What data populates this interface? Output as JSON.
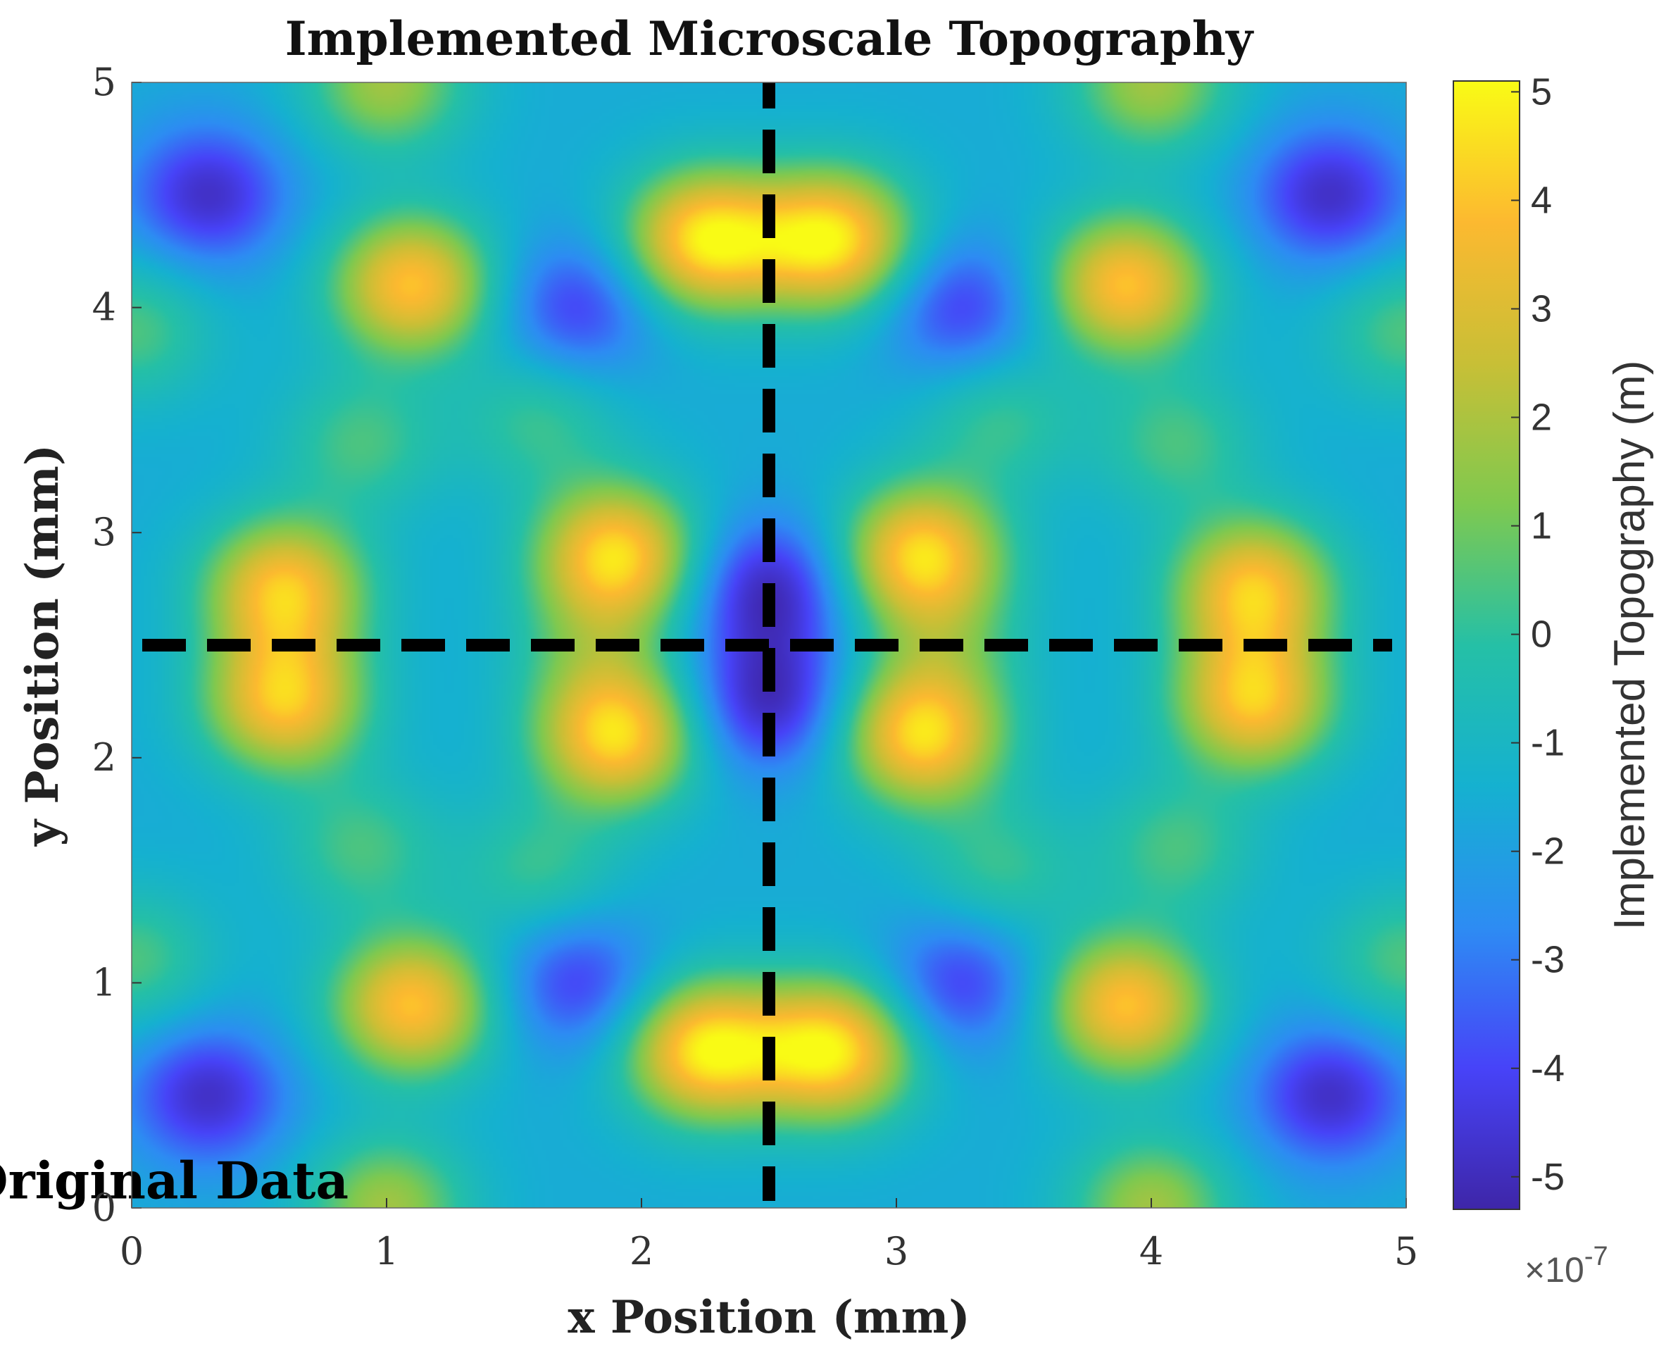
{
  "chart_data": {
    "type": "heatmap",
    "title": "Implemented Microscale Topography",
    "xlabel": "x Position (mm)",
    "ylabel": "y Position (mm)",
    "xlim": [
      0,
      5
    ],
    "ylim": [
      0,
      5
    ],
    "x_ticks": [
      "0",
      "1",
      "2",
      "3",
      "4",
      "5"
    ],
    "y_ticks": [
      "0",
      "1",
      "2",
      "3",
      "4",
      "5"
    ],
    "colorbar": {
      "label": "Implemented Topography (m)",
      "range": [
        -5.3e-07,
        5.1e-07
      ],
      "ticks": [
        "-5",
        "-4",
        "-3",
        "-2",
        "-1",
        "0",
        "1",
        "2",
        "3",
        "4",
        "5"
      ],
      "tick_values": [
        -5,
        -4,
        -3,
        -2,
        -1,
        0,
        1,
        2,
        3,
        4,
        5
      ],
      "multiplier_base": "×10",
      "multiplier_exp": "-7",
      "colormap": "parula",
      "colors": [
        "#3e26a8",
        "#4743f8",
        "#2d8cf3",
        "#15b1d0",
        "#25c0a6",
        "#7fc94f",
        "#c8bf36",
        "#fcb930",
        "#f9fb15"
      ]
    },
    "background_level": -1.6,
    "features": [
      {
        "x": 2.25,
        "y": 4.3,
        "value": 4.8
      },
      {
        "x": 2.75,
        "y": 4.3,
        "value": 4.8
      },
      {
        "x": 2.25,
        "y": 0.7,
        "value": 4.8
      },
      {
        "x": 2.75,
        "y": 0.7,
        "value": 4.8
      },
      {
        "x": 1.1,
        "y": 4.1,
        "value": 4.0
      },
      {
        "x": 3.9,
        "y": 4.1,
        "value": 4.0
      },
      {
        "x": 1.1,
        "y": 0.9,
        "value": 4.0
      },
      {
        "x": 3.9,
        "y": 0.9,
        "value": 4.0
      },
      {
        "x": 0.6,
        "y": 2.75,
        "value": 4.0
      },
      {
        "x": 0.6,
        "y": 2.25,
        "value": 4.0
      },
      {
        "x": 4.4,
        "y": 2.75,
        "value": 4.0
      },
      {
        "x": 4.4,
        "y": 2.25,
        "value": 4.0
      },
      {
        "x": 1.9,
        "y": 2.9,
        "value": 4.5
      },
      {
        "x": 3.1,
        "y": 2.9,
        "value": 4.5
      },
      {
        "x": 1.9,
        "y": 2.1,
        "value": 4.5
      },
      {
        "x": 3.1,
        "y": 2.1,
        "value": 4.5
      },
      {
        "x": 2.5,
        "y": 2.75,
        "value": -5.0
      },
      {
        "x": 2.5,
        "y": 2.25,
        "value": -5.0
      },
      {
        "x": 0.3,
        "y": 4.5,
        "value": -4.8
      },
      {
        "x": 4.7,
        "y": 4.5,
        "value": -4.8
      },
      {
        "x": 0.3,
        "y": 0.5,
        "value": -4.8
      },
      {
        "x": 4.7,
        "y": 0.5,
        "value": -4.8
      },
      {
        "x": 1.75,
        "y": 4.0,
        "value": -4.2
      },
      {
        "x": 3.25,
        "y": 4.0,
        "value": -4.2
      },
      {
        "x": 1.75,
        "y": 1.0,
        "value": -4.2
      },
      {
        "x": 3.25,
        "y": 1.0,
        "value": -4.2
      },
      {
        "x": 0.9,
        "y": 3.4,
        "value": 0.4
      },
      {
        "x": 4.1,
        "y": 3.4,
        "value": 0.4
      },
      {
        "x": 0.9,
        "y": 1.6,
        "value": 0.4
      },
      {
        "x": 4.1,
        "y": 1.6,
        "value": 0.4
      },
      {
        "x": 1.6,
        "y": 3.5,
        "value": 0.2
      },
      {
        "x": 3.4,
        "y": 3.5,
        "value": 0.2
      },
      {
        "x": 1.6,
        "y": 1.5,
        "value": 0.2
      },
      {
        "x": 3.4,
        "y": 1.5,
        "value": 0.2
      },
      {
        "x": 1.0,
        "y": 5.0,
        "value": 1.8
      },
      {
        "x": 4.0,
        "y": 5.0,
        "value": 1.8
      },
      {
        "x": 1.0,
        "y": 0.0,
        "value": 1.8
      },
      {
        "x": 4.0,
        "y": 0.0,
        "value": 1.8
      },
      {
        "x": 0.0,
        "y": 3.9,
        "value": 0.5
      },
      {
        "x": 5.0,
        "y": 3.9,
        "value": 0.5
      },
      {
        "x": 0.0,
        "y": 1.1,
        "value": 0.5
      },
      {
        "x": 5.0,
        "y": 1.1,
        "value": 0.5
      },
      {
        "x": 1.8,
        "y": 2.5,
        "value": 0.0
      },
      {
        "x": 3.2,
        "y": 2.5,
        "value": 0.0
      }
    ],
    "dashed_lines": [
      {
        "orientation": "vertical",
        "x": 2.5
      },
      {
        "orientation": "horizontal",
        "y": 2.5
      }
    ],
    "annotation": {
      "text": "Original Data",
      "x": 0.53,
      "y": 0.12
    }
  }
}
